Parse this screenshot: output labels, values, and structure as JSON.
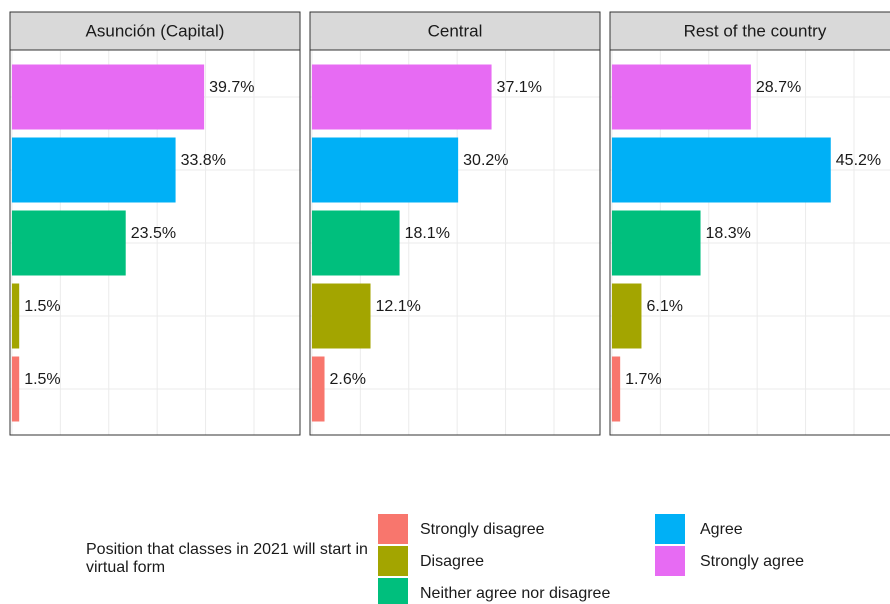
{
  "chart_data": {
    "type": "bar",
    "orientation": "horizontal",
    "legend_title": "Position that classes in 2021 will start in virtual form",
    "categories": [
      "Strongly disagree",
      "Disagree",
      "Neither agree nor disagree",
      "Agree",
      "Strongly agree"
    ],
    "colors": [
      "#F8766D",
      "#A3A500",
      "#00BF7D",
      "#00B0F6",
      "#E76BF3"
    ],
    "xlim": [
      -0.4,
      59.5
    ],
    "xticks": [
      0,
      10,
      20,
      30,
      40,
      50
    ],
    "grid": true,
    "facets": [
      {
        "title": "Asunción (Capital)",
        "values": [
          1.5,
          1.5,
          23.5,
          33.8,
          39.7
        ],
        "value_labels": [
          "1.5%",
          "1.5%",
          "23.5%",
          "33.8%",
          "39.7%"
        ]
      },
      {
        "title": "Central",
        "values": [
          2.6,
          12.1,
          18.1,
          30.2,
          37.1
        ],
        "value_labels": [
          "2.6%",
          "12.1%",
          "18.1%",
          "30.2%",
          "37.1%"
        ]
      },
      {
        "title": "Rest of the country",
        "values": [
          1.7,
          6.1,
          18.3,
          45.2,
          28.7
        ],
        "value_labels": [
          "1.7%",
          "6.1%",
          "18.3%",
          "45.2%",
          "28.7%"
        ]
      }
    ]
  }
}
